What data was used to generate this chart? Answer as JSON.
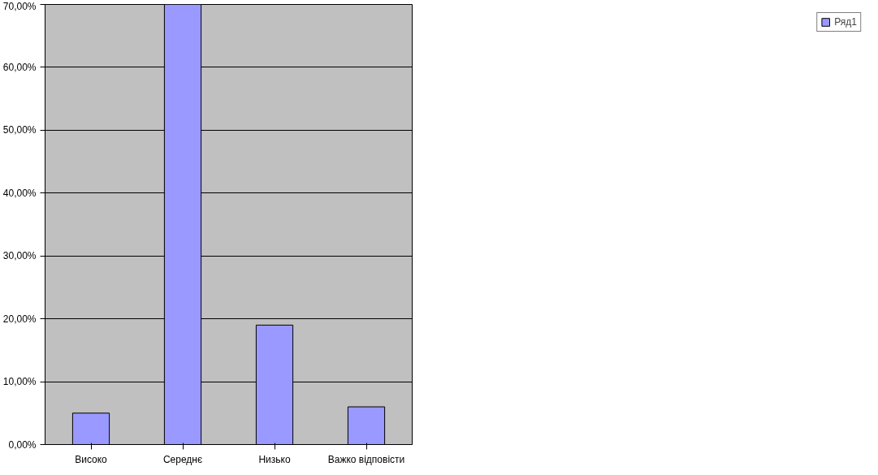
{
  "chart_data": {
    "type": "bar",
    "categories": [
      "Високо",
      "Середнє",
      "Низько",
      "Важко відповісти"
    ],
    "series": [
      {
        "name": "Ряд1",
        "color": "#9999ff",
        "values": [
          5,
          70,
          19,
          6
        ]
      }
    ],
    "ylim": [
      0,
      70
    ],
    "yticks": [
      {
        "value": 0,
        "label": "0,00%"
      },
      {
        "value": 10,
        "label": "10,00%"
      },
      {
        "value": 20,
        "label": "20,00%"
      },
      {
        "value": 30,
        "label": "30,00%"
      },
      {
        "value": 40,
        "label": "40,00%"
      },
      {
        "value": 50,
        "label": "50,00%"
      },
      {
        "value": 60,
        "label": "60,00%"
      },
      {
        "value": 70,
        "label": "70,00%"
      }
    ],
    "grid": "y",
    "legend": "right"
  }
}
